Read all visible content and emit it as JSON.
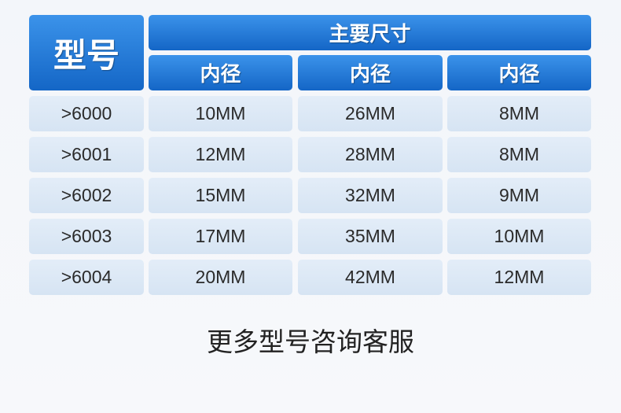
{
  "header": {
    "model_label": "型号",
    "main_dims_label": "主要尺寸",
    "columns": [
      "内径",
      "内径",
      "内径"
    ]
  },
  "rows": [
    [
      ">6000",
      "10MM",
      "26MM",
      "8MM"
    ],
    [
      ">6001",
      "12MM",
      "28MM",
      "8MM"
    ],
    [
      ">6002",
      "15MM",
      "32MM",
      "9MM"
    ],
    [
      ">6003",
      "17MM",
      "35MM",
      "10MM"
    ],
    [
      ">6004",
      "20MM",
      "42MM",
      "12MM"
    ]
  ],
  "footer": "更多型号咨询客服",
  "colors": {
    "header_blue": "#1f78d8",
    "cell_bg": "#dce8f5"
  }
}
